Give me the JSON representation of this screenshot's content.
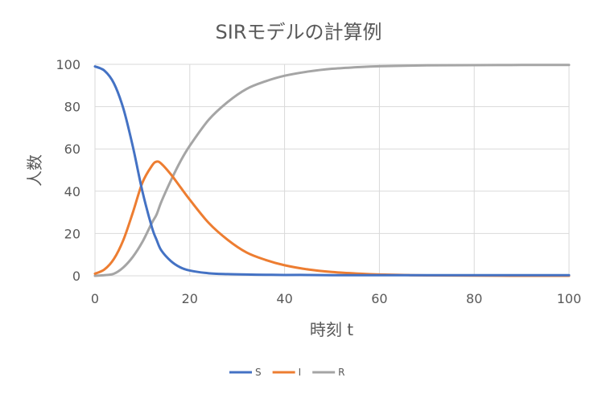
{
  "chart_data": {
    "type": "line",
    "title": "SIRモデルの計算例",
    "xlabel": "時刻 t",
    "ylabel": "人数",
    "xlim": [
      0,
      100
    ],
    "ylim": [
      0,
      100
    ],
    "xticks": [
      0,
      20,
      40,
      60,
      80,
      100
    ],
    "yticks": [
      0,
      20,
      40,
      60,
      80,
      100
    ],
    "grid": true,
    "legend_position": "bottom",
    "x": [
      0,
      2,
      4,
      6,
      8,
      10,
      12,
      13,
      14,
      16,
      18,
      20,
      24,
      28,
      32,
      36,
      40,
      45,
      50,
      55,
      60,
      70,
      80,
      90,
      100
    ],
    "series": [
      {
        "name": "S",
        "color": "#4472C4",
        "values": [
          99,
          97,
          91,
          79,
          61,
          40,
          23,
          17,
          12,
          7,
          4,
          2.5,
          1.2,
          0.8,
          0.6,
          0.5,
          0.4,
          0.4,
          0.3,
          0.3,
          0.3,
          0.3,
          0.3,
          0.3,
          0.3
        ]
      },
      {
        "name": "I",
        "color": "#ED7D31",
        "values": [
          1,
          3,
          8,
          17,
          30,
          44,
          52,
          54,
          53,
          48,
          42,
          36,
          25,
          17,
          11,
          7.5,
          5,
          3,
          1.8,
          1.1,
          0.6,
          0.2,
          0.1,
          0,
          0
        ]
      },
      {
        "name": "R",
        "color": "#A5A5A5",
        "values": [
          0,
          0.3,
          1,
          4,
          9,
          16,
          25,
          29,
          35,
          45,
          54,
          61.5,
          73.8,
          82.2,
          88.4,
          92,
          94.6,
          96.6,
          97.9,
          98.6,
          99.1,
          99.5,
          99.6,
          99.7,
          99.7
        ]
      }
    ]
  }
}
